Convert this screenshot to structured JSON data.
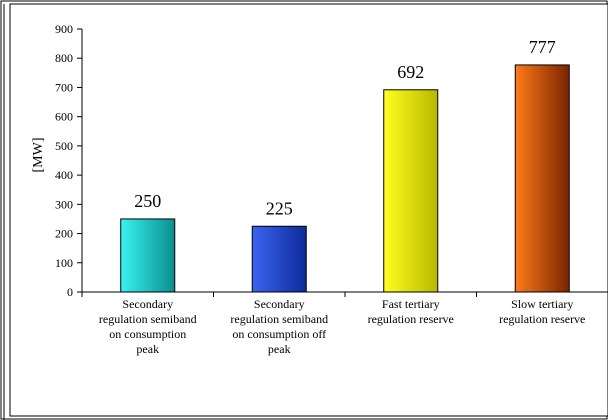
{
  "chart_data": {
    "type": "bar",
    "title": "",
    "xlabel": "",
    "ylabel": "[MW]",
    "ylim": [
      0,
      900
    ],
    "yticks": [
      0,
      100,
      200,
      300,
      400,
      500,
      600,
      700,
      800,
      900
    ],
    "grid": false,
    "legend": "none",
    "categories": [
      [
        "Secondary",
        "regulation semiband",
        "on consumption",
        "peak"
      ],
      [
        "Secondary",
        "regulation semiband",
        "on consumption off",
        "peak"
      ],
      [
        "Fast tertiary",
        "regulation reserve"
      ],
      [
        "Slow tertiary",
        "regulation reserve"
      ]
    ],
    "values": [
      250,
      225,
      692,
      777
    ],
    "data_labels": [
      "250",
      "225",
      "692",
      "777"
    ],
    "colors": [
      [
        "#3af2f2",
        "#0a8e8e"
      ],
      [
        "#3c64f0",
        "#0c2a9a"
      ],
      [
        "#ffff20",
        "#b8b800"
      ],
      [
        "#ff7a1a",
        "#7a2400"
      ]
    ]
  }
}
